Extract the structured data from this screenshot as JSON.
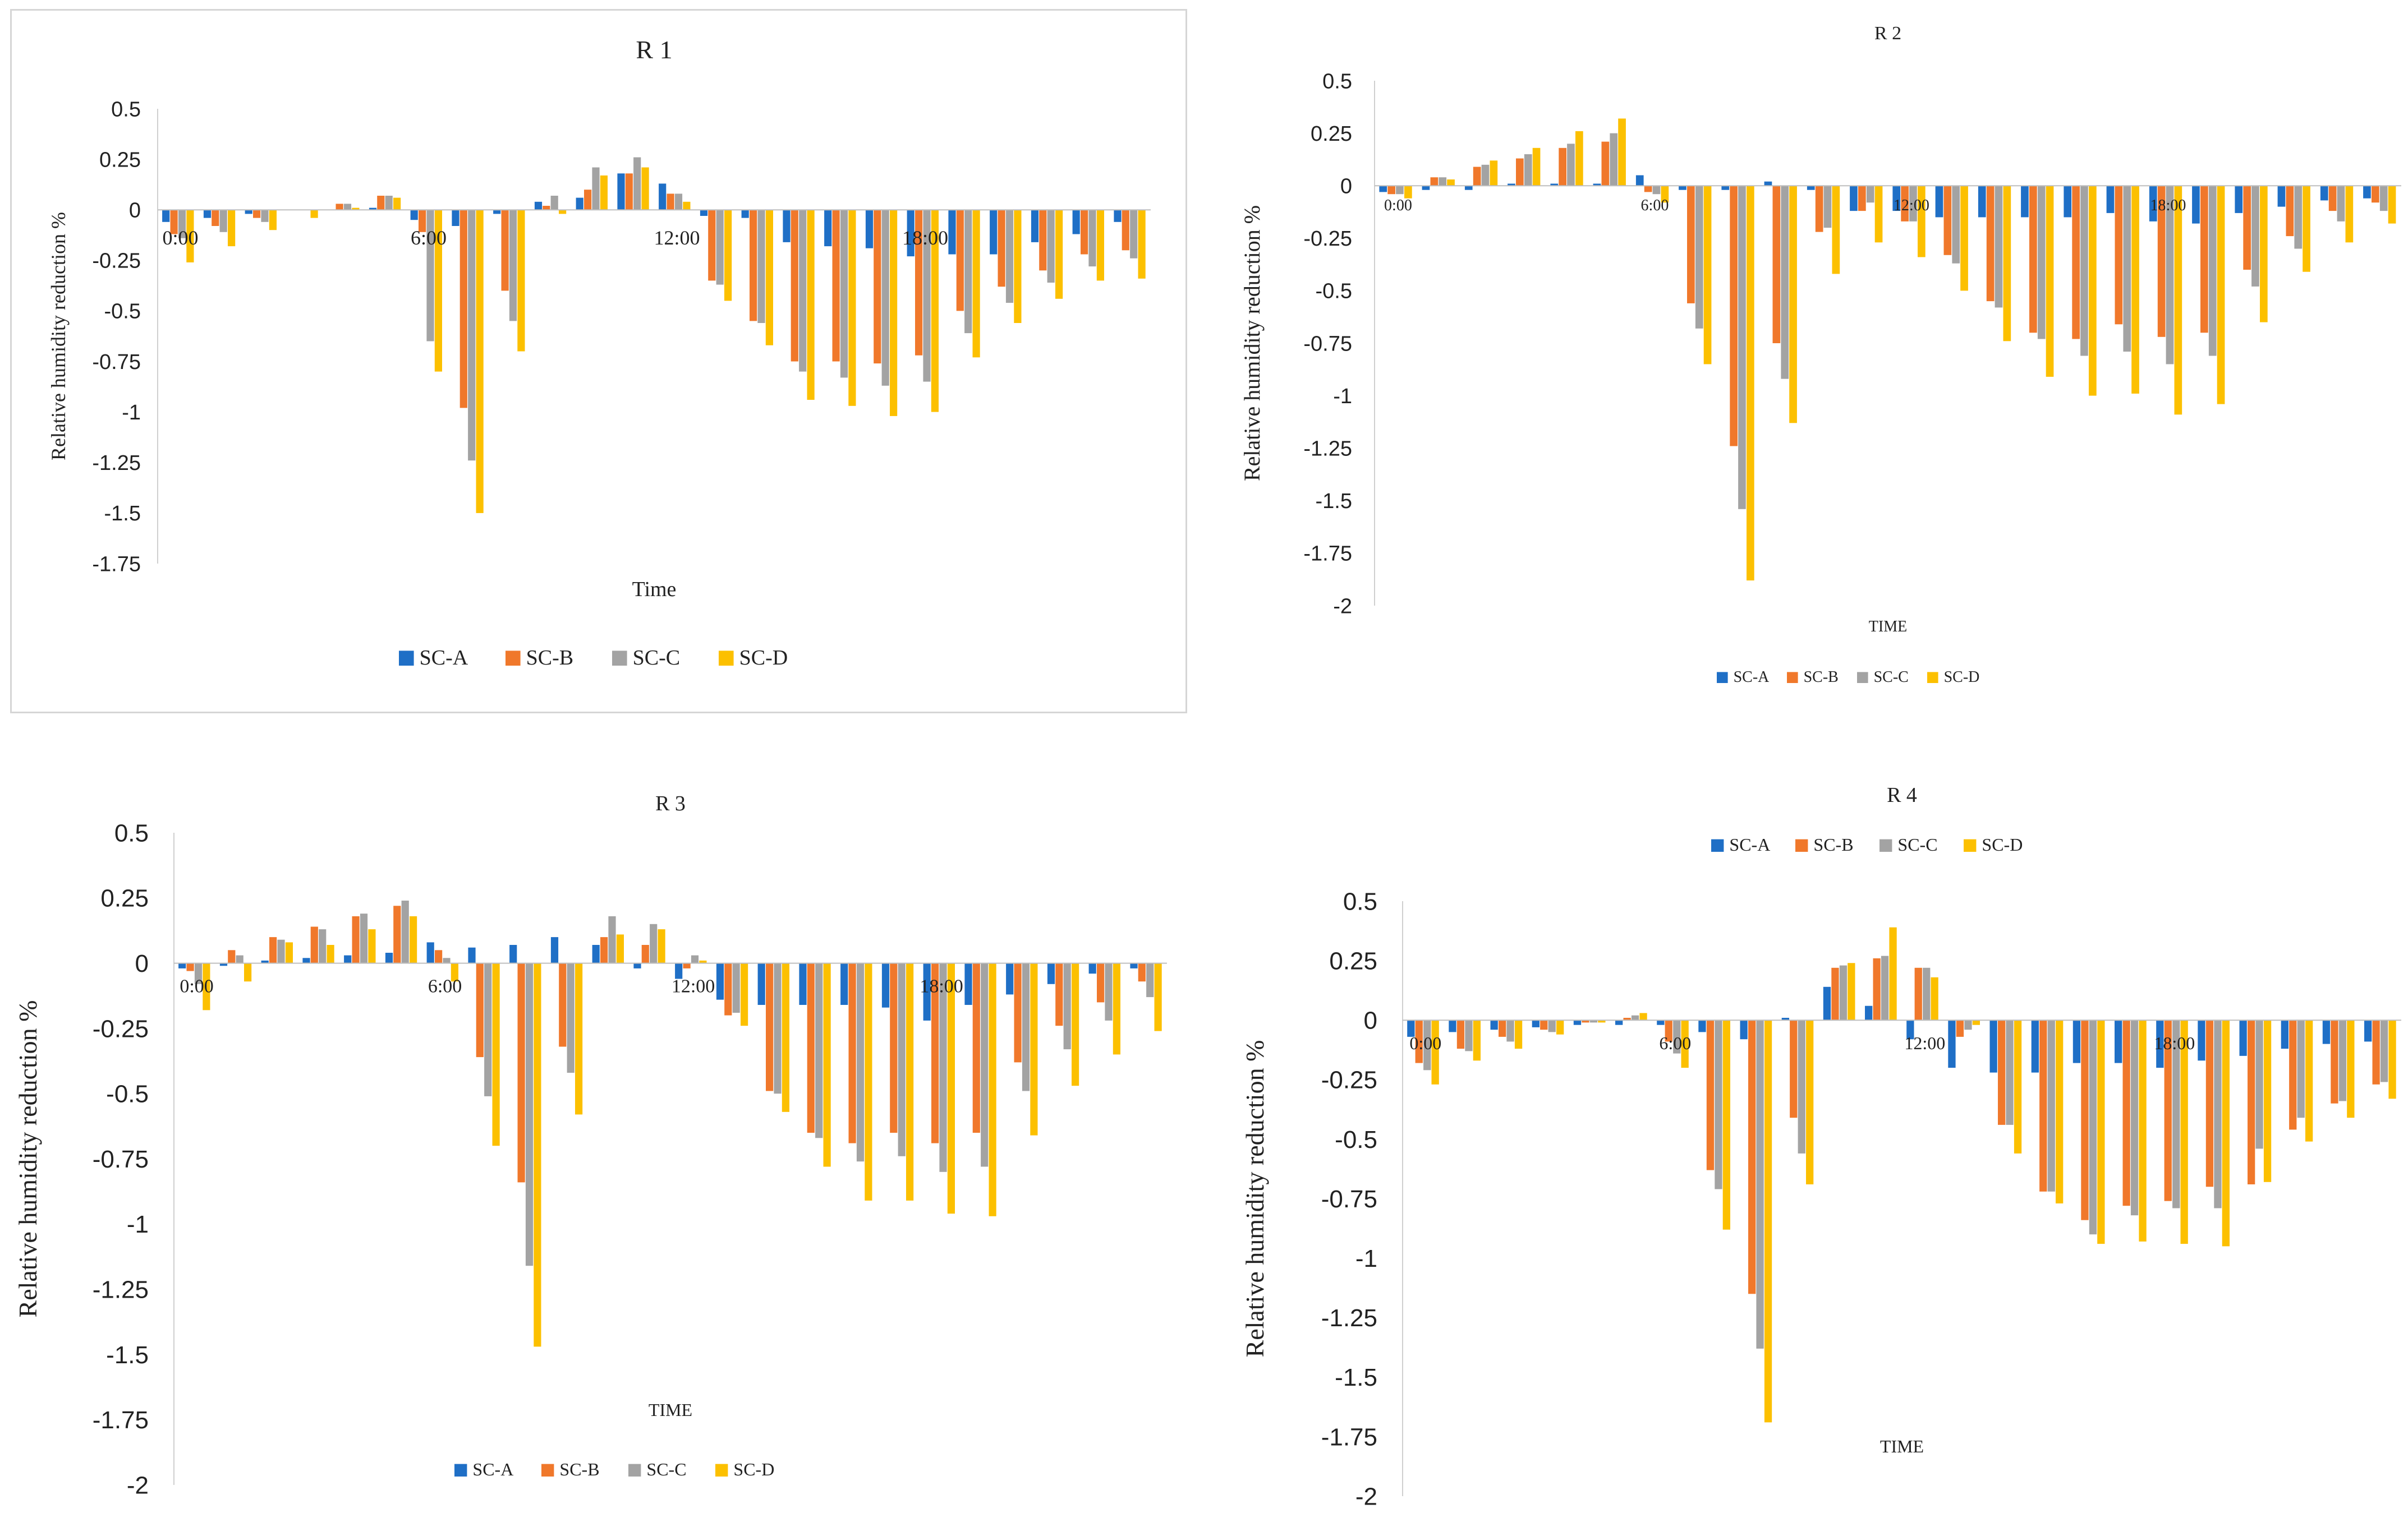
{
  "legend_labels": [
    "SC-A",
    "SC-B",
    "SC-C",
    "SC-D"
  ],
  "colors": {
    "SC-A": "#1f6fc6",
    "SC-B": "#f0782b",
    "SC-C": "#a3a3a3",
    "SC-D": "#fcc000",
    "axis": "#bfbfbf",
    "text": "#222222"
  },
  "chart_data": [
    {
      "type": "bar",
      "title": "R 1",
      "xlabel": "Time",
      "ylabel": "Relative humidity reduction %",
      "ylim": [
        -1.75,
        0.5
      ],
      "yticks": [
        "0.5",
        "0.25",
        "0",
        "-0.25",
        "-0.5",
        "-0.75",
        "-1",
        "-1.25",
        "-1.5",
        "-1.75"
      ],
      "xtick_labels": [
        "0:00",
        "6:00",
        "12:00",
        "18:00"
      ],
      "xtick_hours": [
        0,
        6,
        12,
        18
      ],
      "legend_position": "bottom",
      "categories": [
        "0",
        "1",
        "2",
        "3",
        "4",
        "5",
        "6",
        "7",
        "8",
        "9",
        "10",
        "11",
        "12",
        "13",
        "14",
        "15",
        "16",
        "17",
        "18",
        "19",
        "20",
        "21",
        "22",
        "23"
      ],
      "series": [
        {
          "name": "SC-A",
          "values": [
            -0.06,
            -0.04,
            -0.02,
            0,
            0,
            0.01,
            -0.05,
            -0.08,
            -0.02,
            0.04,
            0.06,
            0.18,
            0.13,
            -0.03,
            -0.04,
            -0.16,
            -0.18,
            -0.19,
            -0.23,
            -0.22,
            -0.22,
            -0.16,
            -0.12,
            -0.06
          ]
        },
        {
          "name": "SC-B",
          "values": [
            -0.12,
            -0.08,
            -0.04,
            0,
            0.03,
            0.07,
            -0.11,
            -0.98,
            -0.4,
            0.02,
            0.1,
            0.18,
            0.08,
            -0.35,
            -0.55,
            -0.75,
            -0.75,
            -0.76,
            -0.72,
            -0.5,
            -0.38,
            -0.3,
            -0.22,
            -0.2
          ]
        },
        {
          "name": "SC-C",
          "values": [
            -0.14,
            -0.11,
            -0.06,
            0,
            0.03,
            0.07,
            -0.65,
            -1.24,
            -0.55,
            0.07,
            0.21,
            0.26,
            0.08,
            -0.37,
            -0.56,
            -0.8,
            -0.83,
            -0.87,
            -0.85,
            -0.61,
            -0.46,
            -0.36,
            -0.28,
            -0.24
          ]
        },
        {
          "name": "SC-D",
          "values": [
            -0.26,
            -0.18,
            -0.1,
            -0.04,
            0.01,
            0.06,
            -0.8,
            -1.5,
            -0.7,
            -0.02,
            0.17,
            0.21,
            0.04,
            -0.45,
            -0.67,
            -0.94,
            -0.97,
            -1.02,
            -1.0,
            -0.73,
            -0.56,
            -0.44,
            -0.35,
            -0.34
          ]
        }
      ]
    },
    {
      "type": "bar",
      "title": "R 2",
      "xlabel": "TIME",
      "ylabel": "Relative humidity reduction %",
      "ylim": [
        -2,
        0.5
      ],
      "yticks": [
        "0.5",
        "0.25",
        "0",
        "-0.25",
        "-0.5",
        "-0.75",
        "-1",
        "-1.25",
        "-1.5",
        "-1.75",
        "-2"
      ],
      "xtick_labels": [
        "0:00",
        "6:00",
        "12:00",
        "18:00"
      ],
      "xtick_hours": [
        0,
        6,
        12,
        18
      ],
      "legend_position": "bottom",
      "categories": [
        "0",
        "1",
        "2",
        "3",
        "4",
        "5",
        "6",
        "7",
        "8",
        "9",
        "10",
        "11",
        "12",
        "13",
        "14",
        "15",
        "16",
        "17",
        "18",
        "19",
        "20",
        "21",
        "22",
        "23"
      ],
      "series": [
        {
          "name": "SC-A",
          "values": [
            -0.03,
            -0.02,
            -0.02,
            0.01,
            0.01,
            0.01,
            0.05,
            -0.02,
            -0.02,
            0.02,
            -0.02,
            -0.12,
            -0.12,
            -0.15,
            -0.15,
            -0.15,
            -0.15,
            -0.13,
            -0.17,
            -0.18,
            -0.13,
            -0.1,
            -0.07,
            -0.06
          ]
        },
        {
          "name": "SC-B",
          "values": [
            -0.04,
            0.04,
            0.09,
            0.13,
            0.18,
            0.21,
            -0.03,
            -0.56,
            -1.24,
            -0.75,
            -0.22,
            -0.12,
            -0.17,
            -0.33,
            -0.55,
            -0.7,
            -0.73,
            -0.66,
            -0.72,
            -0.7,
            -0.4,
            -0.24,
            -0.12,
            -0.08
          ]
        },
        {
          "name": "SC-C",
          "values": [
            -0.04,
            0.04,
            0.1,
            0.15,
            0.2,
            0.25,
            -0.04,
            -0.68,
            -1.54,
            -0.92,
            -0.2,
            -0.08,
            -0.17,
            -0.37,
            -0.58,
            -0.73,
            -0.81,
            -0.79,
            -0.85,
            -0.81,
            -0.48,
            -0.3,
            -0.17,
            -0.12
          ]
        },
        {
          "name": "SC-D",
          "values": [
            -0.06,
            0.03,
            0.12,
            0.18,
            0.26,
            0.32,
            -0.08,
            -0.85,
            -1.88,
            -1.13,
            -0.42,
            -0.27,
            -0.34,
            -0.5,
            -0.74,
            -0.91,
            -1.0,
            -0.99,
            -1.09,
            -1.04,
            -0.65,
            -0.41,
            -0.27,
            -0.18
          ]
        }
      ]
    },
    {
      "type": "bar",
      "title": "R 3",
      "xlabel": "TIME",
      "ylabel": "Relative humidity reduction %",
      "ylim": [
        -2,
        0.5
      ],
      "yticks": [
        "0.5",
        "0.25",
        "0",
        "-0.25",
        "-0.5",
        "-0.75",
        "-1",
        "-1.25",
        "-1.5",
        "-1.75",
        "-2"
      ],
      "xtick_labels": [
        "0:00",
        "6:00",
        "12:00",
        "18:00"
      ],
      "xtick_hours": [
        0,
        6,
        12,
        18
      ],
      "legend_position": "bottom",
      "categories": [
        "0",
        "1",
        "2",
        "3",
        "4",
        "5",
        "6",
        "7",
        "8",
        "9",
        "10",
        "11",
        "12",
        "13",
        "14",
        "15",
        "16",
        "17",
        "18",
        "19",
        "20",
        "21",
        "22",
        "23"
      ],
      "series": [
        {
          "name": "SC-A",
          "values": [
            -0.02,
            -0.01,
            0.01,
            0.02,
            0.03,
            0.04,
            0.08,
            0.06,
            0.07,
            0.1,
            0.07,
            -0.02,
            -0.06,
            -0.14,
            -0.16,
            -0.16,
            -0.16,
            -0.17,
            -0.22,
            -0.16,
            -0.12,
            -0.08,
            -0.04,
            -0.02
          ]
        },
        {
          "name": "SC-B",
          "values": [
            -0.03,
            0.05,
            0.1,
            0.14,
            0.18,
            0.22,
            0.05,
            -0.36,
            -0.84,
            -0.32,
            0.1,
            0.07,
            -0.02,
            -0.2,
            -0.49,
            -0.65,
            -0.69,
            -0.65,
            -0.69,
            -0.65,
            -0.38,
            -0.24,
            -0.15,
            -0.07
          ]
        },
        {
          "name": "SC-C",
          "values": [
            -0.08,
            0.03,
            0.09,
            0.13,
            0.19,
            0.24,
            0.02,
            -0.51,
            -1.16,
            -0.42,
            0.18,
            0.15,
            0.03,
            -0.19,
            -0.5,
            -0.67,
            -0.76,
            -0.74,
            -0.8,
            -0.78,
            -0.49,
            -0.33,
            -0.22,
            -0.13
          ]
        },
        {
          "name": "SC-D",
          "values": [
            -0.18,
            -0.07,
            0.08,
            0.07,
            0.13,
            0.18,
            -0.07,
            -0.7,
            -1.47,
            -0.58,
            0.11,
            0.13,
            0.01,
            -0.24,
            -0.57,
            -0.78,
            -0.91,
            -0.91,
            -0.96,
            -0.97,
            -0.66,
            -0.47,
            -0.35,
            -0.26
          ]
        }
      ]
    },
    {
      "type": "bar",
      "title": "R 4",
      "xlabel": "TIME",
      "ylabel": "Relative humidity reduction %",
      "ylim": [
        -2,
        0.5
      ],
      "yticks": [
        "0.5",
        "0.25",
        "0",
        "-0.25",
        "-0.5",
        "-0.75",
        "-1",
        "-1.25",
        "-1.5",
        "-1.75",
        "-2"
      ],
      "xtick_labels": [
        "0:00",
        "6:00",
        "12:00",
        "18:00"
      ],
      "xtick_hours": [
        0,
        6,
        12,
        18
      ],
      "legend_position": "top",
      "categories": [
        "0",
        "1",
        "2",
        "3",
        "4",
        "5",
        "6",
        "7",
        "8",
        "9",
        "10",
        "11",
        "12",
        "13",
        "14",
        "15",
        "16",
        "17",
        "18",
        "19",
        "20",
        "21",
        "22",
        "23"
      ],
      "series": [
        {
          "name": "SC-A",
          "values": [
            -0.07,
            -0.05,
            -0.04,
            -0.03,
            -0.02,
            -0.02,
            -0.02,
            -0.05,
            -0.08,
            0.01,
            0.14,
            0.06,
            -0.08,
            -0.2,
            -0.22,
            -0.22,
            -0.18,
            -0.18,
            -0.2,
            -0.17,
            -0.15,
            -0.12,
            -0.1,
            -0.09
          ]
        },
        {
          "name": "SC-B",
          "values": [
            -0.18,
            -0.12,
            -0.07,
            -0.04,
            -0.01,
            0.01,
            -0.09,
            -0.63,
            -1.15,
            -0.41,
            0.22,
            0.26,
            0.22,
            -0.07,
            -0.44,
            -0.72,
            -0.84,
            -0.78,
            -0.76,
            -0.7,
            -0.69,
            -0.46,
            -0.35,
            -0.27
          ]
        },
        {
          "name": "SC-C",
          "values": [
            -0.21,
            -0.13,
            -0.09,
            -0.05,
            -0.01,
            0.02,
            -0.14,
            -0.71,
            -1.38,
            -0.56,
            0.23,
            0.27,
            0.22,
            -0.04,
            -0.44,
            -0.72,
            -0.9,
            -0.82,
            -0.79,
            -0.79,
            -0.54,
            -0.41,
            -0.34,
            -0.26
          ]
        },
        {
          "name": "SC-D",
          "values": [
            -0.27,
            -0.17,
            -0.12,
            -0.06,
            -0.01,
            0.03,
            -0.2,
            -0.88,
            -1.69,
            -0.69,
            0.24,
            0.39,
            0.18,
            -0.02,
            -0.56,
            -0.77,
            -0.94,
            -0.93,
            -0.94,
            -0.95,
            -0.68,
            -0.51,
            -0.41,
            -0.33
          ]
        }
      ]
    }
  ]
}
